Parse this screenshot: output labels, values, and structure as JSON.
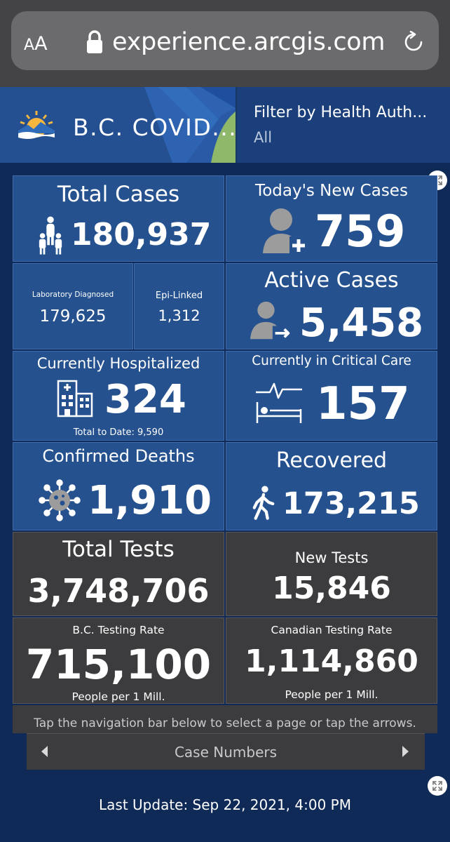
{
  "browser": {
    "aa_small": "A",
    "aa_big": "A",
    "url": "experience.arcgis.com"
  },
  "header": {
    "title": "B.C. COVID...",
    "filter_label": "Filter by Health Auth...",
    "filter_value": "All"
  },
  "panels": {
    "total_cases": {
      "title": "Total Cases",
      "value": "180,937"
    },
    "new_cases": {
      "title": "Today's New Cases",
      "value": "759"
    },
    "lab": {
      "title": "Laboratory Diagnosed",
      "value": "179,625"
    },
    "epi": {
      "title": "Epi-Linked",
      "value": "1,312"
    },
    "active": {
      "title": "Active Cases",
      "value": "5,458"
    },
    "hospitalized": {
      "title": "Currently Hospitalized",
      "value": "324",
      "sub": "Total to Date: 9,590"
    },
    "critical": {
      "title": "Currently in Critical Care",
      "value": "157"
    },
    "deaths": {
      "title": "Confirmed Deaths",
      "value": "1,910"
    },
    "recovered": {
      "title": "Recovered",
      "value": "173,215"
    },
    "total_tests": {
      "title": "Total Tests",
      "value": "3,748,706"
    },
    "new_tests": {
      "title": "New Tests",
      "value": "15,846"
    },
    "bc_rate": {
      "title": "B.C. Testing Rate",
      "value": "715,100",
      "sub": "People per 1 Mill."
    },
    "ca_rate": {
      "title": "Canadian Testing Rate",
      "value": "1,114,860",
      "sub": "People per 1 Mill."
    }
  },
  "nav": {
    "hint": "Tap the navigation bar below to select a page or tap the arrows.",
    "label": "Case Numbers"
  },
  "footer": {
    "last_update": "Last Update: Sep 22, 2021, 4:00 PM"
  },
  "colors": {
    "panel_blue": "#25518f",
    "panel_dark": "#3c3c3e",
    "background": "#0f2a57"
  },
  "icons": [
    "lock-icon",
    "reload-icon",
    "bc-logo-icon",
    "expand-icon",
    "people-icon",
    "person-add-icon",
    "person-arrow-icon",
    "hospital-icon",
    "hospital-bed-icon",
    "virus-icon",
    "walking-icon",
    "chevron-left-icon",
    "chevron-right-icon"
  ]
}
